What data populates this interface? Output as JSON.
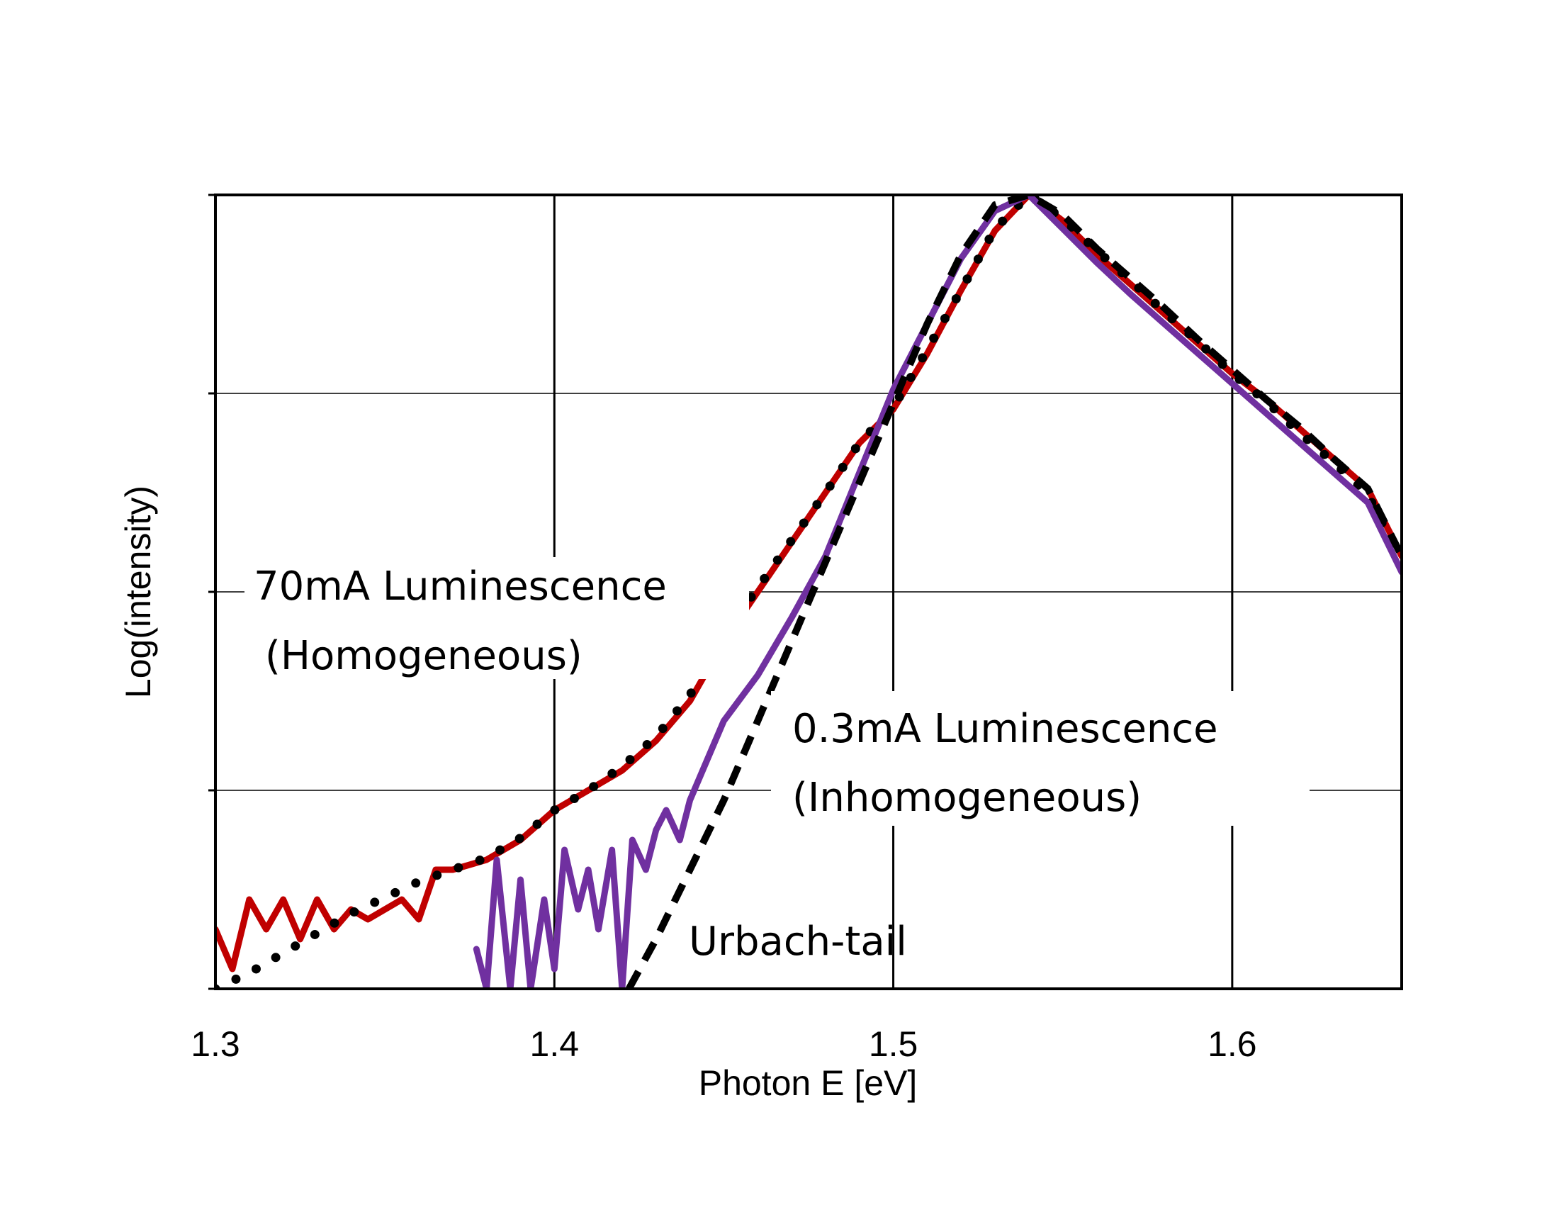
{
  "chart_data": {
    "type": "line",
    "title": "",
    "xlabel": "Photon E [eV]",
    "ylabel": "Log(intensity)",
    "xlim": [
      1.3,
      1.65
    ],
    "ylim": [
      0,
      4
    ],
    "y_tick_labels_shown": false,
    "x_ticks": [
      1.3,
      1.4,
      1.5,
      1.6
    ],
    "x_tick_labels": [
      "1.3",
      "1.4",
      "1.5",
      "1.6"
    ],
    "grid": true,
    "annotations": [
      {
        "text": "70mA Luminescence"
      },
      {
        "text": "(Homogeneous)"
      },
      {
        "text": "0.3mA Luminescence"
      },
      {
        "text": "(Inhomogeneous)"
      },
      {
        "text": "Urbach-tail"
      }
    ],
    "series": [
      {
        "color": "#c00000",
        "style": "solid",
        "x": [
          1.3,
          1.305,
          1.31,
          1.315,
          1.32,
          1.325,
          1.33,
          1.335,
          1.34,
          1.345,
          1.35,
          1.355,
          1.36,
          1.365,
          1.37,
          1.38,
          1.39,
          1.4,
          1.41,
          1.42,
          1.43,
          1.44,
          1.45,
          1.46,
          1.47,
          1.48,
          1.49,
          1.5,
          1.51,
          1.52,
          1.53,
          1.54,
          1.55,
          1.56,
          1.57,
          1.58,
          1.59,
          1.6,
          1.61,
          1.62,
          1.63,
          1.64,
          1.65
        ],
        "y": [
          0.3,
          0.1,
          0.45,
          0.3,
          0.45,
          0.25,
          0.45,
          0.3,
          0.4,
          0.35,
          0.4,
          0.45,
          0.35,
          0.6,
          0.6,
          0.65,
          0.75,
          0.9,
          1.0,
          1.1,
          1.25,
          1.45,
          1.75,
          2.0,
          2.25,
          2.5,
          2.75,
          2.92,
          3.2,
          3.52,
          3.82,
          4.0,
          3.87,
          3.7,
          3.55,
          3.4,
          3.25,
          3.1,
          2.97,
          2.82,
          2.67,
          2.52,
          2.18
        ]
      },
      {
        "color": "#000000",
        "style": "dotted",
        "x": [
          1.3,
          1.31,
          1.32,
          1.33,
          1.34,
          1.35,
          1.36,
          1.37,
          1.38,
          1.39,
          1.4,
          1.41,
          1.42,
          1.43,
          1.44,
          1.45,
          1.46,
          1.47,
          1.48,
          1.49,
          1.5,
          1.51,
          1.52,
          1.53,
          1.54,
          1.55,
          1.56,
          1.57,
          1.58,
          1.59,
          1.6,
          1.61,
          1.62,
          1.63,
          1.64,
          1.65
        ],
        "y": [
          0.0,
          0.08,
          0.18,
          0.28,
          0.38,
          0.46,
          0.54,
          0.6,
          0.66,
          0.76,
          0.9,
          1.0,
          1.12,
          1.27,
          1.48,
          1.78,
          2.02,
          2.26,
          2.5,
          2.75,
          2.93,
          3.22,
          3.52,
          3.83,
          4.0,
          3.88,
          3.72,
          3.57,
          3.41,
          3.26,
          3.1,
          2.96,
          2.8,
          2.65,
          2.49,
          2.15
        ]
      },
      {
        "color": "#7030a0",
        "style": "solid",
        "x": [
          1.377,
          1.38,
          1.383,
          1.387,
          1.39,
          1.393,
          1.397,
          1.4,
          1.403,
          1.407,
          1.41,
          1.413,
          1.417,
          1.42,
          1.423,
          1.427,
          1.43,
          1.433,
          1.437,
          1.44,
          1.445,
          1.45,
          1.46,
          1.47,
          1.48,
          1.49,
          1.5,
          1.51,
          1.52,
          1.53,
          1.54,
          1.55,
          1.56,
          1.57,
          1.58,
          1.59,
          1.6,
          1.61,
          1.62,
          1.63,
          1.64,
          1.65
        ],
        "y": [
          0.2,
          0.0,
          0.65,
          0.0,
          0.55,
          0.0,
          0.45,
          0.1,
          0.7,
          0.4,
          0.6,
          0.3,
          0.7,
          0.0,
          0.75,
          0.6,
          0.8,
          0.9,
          0.75,
          0.95,
          1.15,
          1.35,
          1.58,
          1.87,
          2.18,
          2.6,
          3.02,
          3.35,
          3.68,
          3.92,
          4.0,
          3.83,
          3.66,
          3.5,
          3.35,
          3.2,
          3.05,
          2.9,
          2.75,
          2.6,
          2.45,
          2.1
        ]
      },
      {
        "color": "#000000",
        "style": "dashed",
        "x": [
          1.422,
          1.43,
          1.44,
          1.45,
          1.46,
          1.47,
          1.48,
          1.49,
          1.5,
          1.51,
          1.52,
          1.53,
          1.54,
          1.55,
          1.56,
          1.57,
          1.58,
          1.59,
          1.6,
          1.61,
          1.62,
          1.63,
          1.64,
          1.65
        ],
        "y": [
          0.0,
          0.25,
          0.6,
          0.95,
          1.35,
          1.75,
          2.15,
          2.55,
          2.95,
          3.35,
          3.7,
          3.95,
          4.0,
          3.9,
          3.73,
          3.58,
          3.43,
          3.27,
          3.12,
          2.97,
          2.83,
          2.67,
          2.52,
          2.18
        ]
      }
    ]
  }
}
